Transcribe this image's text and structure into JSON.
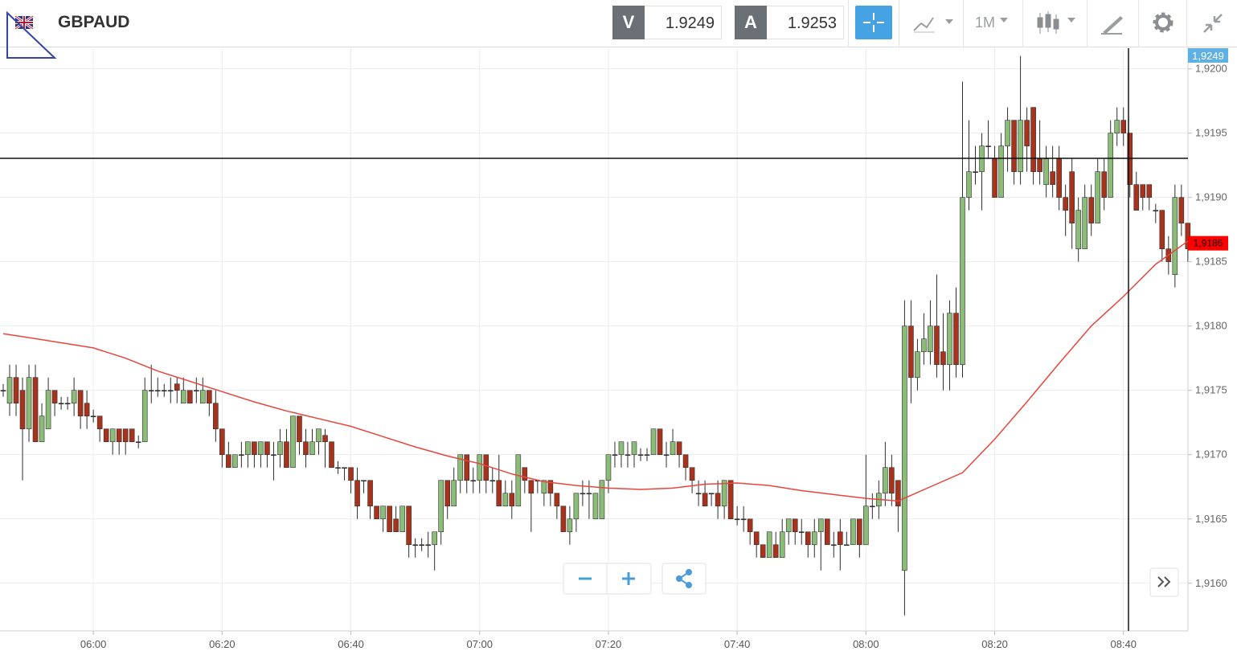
{
  "header": {
    "symbol": "GBPAUD",
    "bid_label": "V",
    "bid": "1.9249",
    "ask_label": "A",
    "ask": "1.9253",
    "timeframe": "1M"
  },
  "chart_data": {
    "type": "candlestick",
    "x": [
      "05:46",
      "05:47",
      "05:48",
      "05:49",
      "05:50",
      "05:51",
      "05:52",
      "05:53",
      "05:54",
      "05:55",
      "05:56",
      "05:57",
      "05:58",
      "05:59",
      "06:00",
      "06:01",
      "06:02",
      "06:03",
      "06:04",
      "06:05",
      "06:06",
      "06:07",
      "06:08",
      "06:09",
      "06:10",
      "06:11",
      "06:12",
      "06:13",
      "06:14",
      "06:15",
      "06:16",
      "06:17",
      "06:18",
      "06:19",
      "06:20",
      "06:21",
      "06:22",
      "06:23",
      "06:24",
      "06:25",
      "06:26",
      "06:27",
      "06:28",
      "06:29",
      "06:30",
      "06:31",
      "06:32",
      "06:33",
      "06:34",
      "06:35",
      "06:36",
      "06:37",
      "06:38",
      "06:39",
      "06:40",
      "06:41",
      "06:42",
      "06:43",
      "06:44",
      "06:45",
      "06:46",
      "06:47",
      "06:48",
      "06:49",
      "06:50",
      "06:51",
      "06:52",
      "06:53",
      "06:54",
      "06:55",
      "06:56",
      "06:57",
      "06:58",
      "06:59",
      "07:00",
      "07:01",
      "07:02",
      "07:03",
      "07:04",
      "07:05",
      "07:06",
      "07:07",
      "07:08",
      "07:09",
      "07:10",
      "07:11",
      "07:12",
      "07:13",
      "07:14",
      "07:15",
      "07:16",
      "07:17",
      "07:18",
      "07:19",
      "07:20",
      "07:21",
      "07:22",
      "07:23",
      "07:24",
      "07:25",
      "07:26",
      "07:27",
      "07:28",
      "07:29",
      "07:30",
      "07:31",
      "07:32",
      "07:33",
      "07:34",
      "07:35",
      "07:36",
      "07:37",
      "07:38",
      "07:39",
      "07:40",
      "07:41",
      "07:42",
      "07:43",
      "07:44",
      "07:45",
      "07:46",
      "07:47",
      "07:48",
      "07:49",
      "07:50",
      "07:51",
      "07:52",
      "07:53",
      "07:54",
      "07:55",
      "07:56",
      "07:57",
      "07:58",
      "07:59",
      "08:00",
      "08:01",
      "08:02",
      "08:03",
      "08:04",
      "08:05",
      "08:06",
      "08:07",
      "08:08",
      "08:09",
      "08:10",
      "08:11",
      "08:12",
      "08:13",
      "08:14",
      "08:15",
      "08:16",
      "08:17",
      "08:18",
      "08:19",
      "08:20",
      "08:21",
      "08:22",
      "08:23",
      "08:24",
      "08:25",
      "08:26",
      "08:27",
      "08:28",
      "08:29",
      "08:30",
      "08:31",
      "08:32",
      "08:33",
      "08:34",
      "08:35",
      "08:36",
      "08:37",
      "08:38",
      "08:39",
      "08:40",
      "08:41",
      "08:42",
      "08:43",
      "08:44",
      "08:45",
      "08:46",
      "08:47",
      "08:48",
      "08:49",
      "08:50"
    ],
    "open": [
      1.9175,
      1.9174,
      1.9176,
      1.9175,
      1.9172,
      1.9176,
      1.9171,
      1.9172,
      1.9175,
      1.9174,
      1.9174,
      1.9174,
      1.9175,
      1.9174,
      1.9173,
      1.9173,
      1.9172,
      1.9171,
      1.9172,
      1.9172,
      1.9172,
      1.9171,
      1.9171,
      1.9175,
      1.9175,
      1.9175,
      1.9175,
      1.91755,
      1.9174,
      1.9175,
      1.9175,
      1.9174,
      1.9175,
      1.9174,
      1.9172,
      1.917,
      1.9169,
      1.917,
      1.917,
      1.9171,
      1.917,
      1.9171,
      1.917,
      1.917,
      1.9171,
      1.9169,
      1.9173,
      1.9171,
      1.917,
      1.9171,
      1.91715,
      1.9171,
      1.9169,
      1.9169,
      1.9169,
      1.9168,
      1.9168,
      1.9168,
      1.9166,
      1.9165,
      1.9166,
      1.9165,
      1.9164,
      1.9166,
      1.9163,
      1.9163,
      1.9163,
      1.9163,
      1.9164,
      1.9168,
      1.9166,
      1.9168,
      1.917,
      1.9168,
      1.9168,
      1.917,
      1.9168,
      1.9168,
      1.9166,
      1.9167,
      1.9166,
      1.9169,
      1.9168,
      1.9168,
      1.9167,
      1.9168,
      1.9167,
      1.9166,
      1.9164,
      1.9165,
      1.9167,
      1.9167,
      1.9165,
      1.9165,
      1.9168,
      1.917,
      1.917,
      1.917,
      1.917,
      1.917,
      1.917,
      1.917,
      1.9172,
      1.917,
      1.917,
      1.9171,
      1.917,
      1.9169,
      1.9167,
      1.9167,
      1.9167,
      1.9167,
      1.9166,
      1.9168,
      1.9165,
      1.9165,
      1.9165,
      1.9164,
      1.9163,
      1.9162,
      1.9163,
      1.9162,
      1.9164,
      1.9165,
      1.9164,
      1.9164,
      1.9163,
      1.9164,
      1.9165,
      1.9163,
      1.9164,
      1.9163,
      1.9163,
      1.9165,
      1.9163,
      1.9166,
      1.9166,
      1.9167,
      1.9169,
      1.9168,
      1.9161,
      1.918,
      1.9176,
      1.9178,
      1.9178,
      1.918,
      1.9178,
      1.9177,
      1.9181,
      1.9177,
      1.919,
      1.9192,
      1.9192,
      1.9194,
      1.9193,
      1.919,
      1.9194,
      1.9196,
      1.9192,
      1.9196,
      1.9197,
      1.9193,
      1.9191,
      1.9192,
      1.9193,
      1.919,
      1.9192,
      1.9186,
      1.9186,
      1.919,
      1.9188,
      1.9192,
      1.919,
      1.9195,
      1.9196,
      1.9195,
      1.9191,
      1.9191,
      1.9191,
      1.9189,
      1.9189,
      1.9186,
      1.9184,
      1.919,
      1.9188
    ],
    "high": [
      1.91755,
      1.9177,
      1.9177,
      1.9176,
      1.9177,
      1.9177,
      1.9174,
      1.9176,
      1.9175,
      1.91745,
      1.91745,
      1.9176,
      1.9175,
      1.9175,
      1.91735,
      1.9173,
      1.9172,
      1.9172,
      1.9172,
      1.9172,
      1.9172,
      1.91715,
      1.9176,
      1.9177,
      1.9176,
      1.91755,
      1.9176,
      1.9176,
      1.9176,
      1.9175,
      1.9176,
      1.9176,
      1.9175,
      1.9175,
      1.9172,
      1.9171,
      1.917,
      1.9171,
      1.9171,
      1.9171,
      1.9171,
      1.9171,
      1.9171,
      1.9172,
      1.9172,
      1.9173,
      1.9173,
      1.9172,
      1.9172,
      1.9172,
      1.9172,
      1.9171,
      1.91695,
      1.9169,
      1.9169,
      1.9169,
      1.9168,
      1.9168,
      1.9166,
      1.9166,
      1.9166,
      1.9166,
      1.9166,
      1.9166,
      1.91635,
      1.91635,
      1.9164,
      1.9164,
      1.9168,
      1.9168,
      1.9169,
      1.917,
      1.917,
      1.9169,
      1.917,
      1.917,
      1.9169,
      1.917,
      1.9168,
      1.9168,
      1.917,
      1.9169,
      1.9168,
      1.9168,
      1.9168,
      1.9168,
      1.9167,
      1.9166,
      1.9166,
      1.9167,
      1.9168,
      1.9168,
      1.9167,
      1.9168,
      1.917,
      1.9171,
      1.9171,
      1.9171,
      1.9171,
      1.91705,
      1.91705,
      1.9172,
      1.9172,
      1.9171,
      1.9172,
      1.9171,
      1.917,
      1.9169,
      1.9168,
      1.9168,
      1.9167,
      1.9168,
      1.9168,
      1.9168,
      1.9166,
      1.9166,
      1.9165,
      1.9164,
      1.9163,
      1.9164,
      1.9164,
      1.9165,
      1.9165,
      1.9165,
      1.9165,
      1.9164,
      1.9165,
      1.9165,
      1.9165,
      1.9164,
      1.9165,
      1.9164,
      1.9165,
      1.9165,
      1.917,
      1.9167,
      1.9168,
      1.9171,
      1.917,
      1.9168,
      1.9182,
      1.9182,
      1.9179,
      1.9181,
      1.9182,
      1.9184,
      1.9181,
      1.9182,
      1.9183,
      1.9199,
      1.9196,
      1.9194,
      1.9195,
      1.9196,
      1.9194,
      1.9195,
      1.9197,
      1.9196,
      1.9201,
      1.9197,
      1.9197,
      1.9196,
      1.9194,
      1.9194,
      1.9194,
      1.9191,
      1.9193,
      1.919,
      1.9191,
      1.9191,
      1.9193,
      1.9193,
      1.9196,
      1.9197,
      1.9197,
      1.9195,
      1.9192,
      1.9191,
      1.9191,
      1.91895,
      1.9189,
      1.9187,
      1.9191,
      1.9191,
      1.9188
    ],
    "low": [
      1.91745,
      1.9173,
      1.9173,
      1.9168,
      1.9171,
      1.9171,
      1.9171,
      1.9172,
      1.9173,
      1.91735,
      1.91735,
      1.9173,
      1.9172,
      1.9172,
      1.91725,
      1.9171,
      1.9171,
      1.917,
      1.917,
      1.917,
      1.9171,
      1.91705,
      1.9171,
      1.9174,
      1.91745,
      1.91745,
      1.9174,
      1.9174,
      1.9174,
      1.9174,
      1.9174,
      1.9174,
      1.9173,
      1.9171,
      1.9169,
      1.9169,
      1.9169,
      1.9169,
      1.9169,
      1.9169,
      1.9169,
      1.9169,
      1.9168,
      1.9169,
      1.9169,
      1.9169,
      1.917,
      1.9169,
      1.917,
      1.917,
      1.9169,
      1.9169,
      1.91685,
      1.9168,
      1.9167,
      1.9165,
      1.9167,
      1.9165,
      1.9165,
      1.9164,
      1.9164,
      1.9164,
      1.9164,
      1.9162,
      1.9162,
      1.91625,
      1.9162,
      1.9161,
      1.9163,
      1.9165,
      1.9166,
      1.9167,
      1.9167,
      1.9167,
      1.9167,
      1.9167,
      1.9167,
      1.9166,
      1.9166,
      1.9165,
      1.9166,
      1.9167,
      1.9164,
      1.9167,
      1.9166,
      1.9166,
      1.9165,
      1.9164,
      1.9163,
      1.9164,
      1.9166,
      1.9165,
      1.9165,
      1.9165,
      1.9167,
      1.9169,
      1.9169,
      1.9169,
      1.9169,
      1.91695,
      1.91695,
      1.917,
      1.917,
      1.9169,
      1.917,
      1.9169,
      1.9168,
      1.9167,
      1.9166,
      1.9166,
      1.9166,
      1.9165,
      1.9165,
      1.9165,
      1.91645,
      1.9164,
      1.9163,
      1.9162,
      1.9162,
      1.9162,
      1.9162,
      1.9162,
      1.9163,
      1.9163,
      1.9163,
      1.9162,
      1.9162,
      1.9161,
      1.9163,
      1.9162,
      1.9161,
      1.9163,
      1.9163,
      1.9162,
      1.9163,
      1.9165,
      1.9165,
      1.9166,
      1.9166,
      1.9164,
      1.91575,
      1.9174,
      1.9175,
      1.9177,
      1.9177,
      1.9176,
      1.9175,
      1.9175,
      1.9176,
      1.9176,
      1.9189,
      1.9191,
      1.9189,
      1.9193,
      1.919,
      1.919,
      1.9192,
      1.9191,
      1.9191,
      1.9192,
      1.9191,
      1.9191,
      1.919,
      1.919,
      1.9189,
      1.9187,
      1.9186,
      1.9185,
      1.9186,
      1.9187,
      1.9188,
      1.9189,
      1.919,
      1.9194,
      1.9194,
      1.919,
      1.9189,
      1.9189,
      1.9189,
      1.9188,
      1.9185,
      1.9184,
      1.9183,
      1.9187,
      1.9185
    ],
    "close": [
      1.9175,
      1.9176,
      1.9174,
      1.9172,
      1.9176,
      1.9171,
      1.9173,
      1.9175,
      1.9174,
      1.9174,
      1.9174,
      1.9175,
      1.9173,
      1.9173,
      1.9173,
      1.9172,
      1.9171,
      1.9172,
      1.9171,
      1.9171,
      1.9171,
      1.9171,
      1.9175,
      1.9175,
      1.9175,
      1.9175,
      1.9175,
      1.9175,
      1.9175,
      1.9174,
      1.9175,
      1.9175,
      1.9174,
      1.9172,
      1.917,
      1.9169,
      1.917,
      1.917,
      1.9171,
      1.917,
      1.9171,
      1.917,
      1.917,
      1.9171,
      1.9169,
      1.9173,
      1.9171,
      1.917,
      1.9171,
      1.9172,
      1.9171,
      1.9169,
      1.9169,
      1.9169,
      1.9168,
      1.9166,
      1.9168,
      1.9166,
      1.9165,
      1.9166,
      1.9164,
      1.9164,
      1.9166,
      1.9163,
      1.9163,
      1.9163,
      1.9163,
      1.9164,
      1.9168,
      1.9166,
      1.9168,
      1.917,
      1.9168,
      1.9168,
      1.917,
      1.9168,
      1.9168,
      1.9166,
      1.9167,
      1.9166,
      1.917,
      1.9168,
      1.9167,
      1.9168,
      1.9168,
      1.9167,
      1.9166,
      1.9164,
      1.9165,
      1.9167,
      1.9167,
      1.9167,
      1.9167,
      1.9168,
      1.917,
      1.917,
      1.9171,
      1.917,
      1.9171,
      1.917,
      1.917,
      1.9172,
      1.917,
      1.917,
      1.9171,
      1.917,
      1.9169,
      1.9168,
      1.9167,
      1.9166,
      1.9167,
      1.9166,
      1.9168,
      1.9165,
      1.9165,
      1.9165,
      1.9164,
      1.9163,
      1.9162,
      1.9164,
      1.9162,
      1.9164,
      1.9165,
      1.9164,
      1.9164,
      1.9163,
      1.9164,
      1.9165,
      1.9163,
      1.9163,
      1.9163,
      1.9163,
      1.9165,
      1.9163,
      1.9166,
      1.9166,
      1.9167,
      1.9169,
      1.9167,
      1.9166,
      1.918,
      1.9176,
      1.9178,
      1.9179,
      1.918,
      1.9177,
      1.9177,
      1.9181,
      1.9177,
      1.919,
      1.9192,
      1.9192,
      1.9194,
      1.9194,
      1.919,
      1.9194,
      1.9196,
      1.9192,
      1.9196,
      1.9194,
      1.9192,
      1.9192,
      1.9193,
      1.9191,
      1.919,
      1.9189,
      1.9188,
      1.9189,
      1.919,
      1.9188,
      1.9192,
      1.919,
      1.9195,
      1.9196,
      1.9195,
      1.9191,
      1.9189,
      1.919,
      1.919,
      1.9189,
      1.9186,
      1.9185,
      1.919,
      1.9188,
      1.9186
    ],
    "colors": {
      "up": "#8cbd78",
      "down": "#a8331c",
      "wick": "#2e2e2e"
    },
    "ma": {
      "color": "#e8453c",
      "x": [
        "05:46",
        "05:50",
        "05:55",
        "06:00",
        "06:05",
        "06:10",
        "06:15",
        "06:20",
        "06:25",
        "06:30",
        "06:35",
        "06:40",
        "06:45",
        "06:50",
        "06:55",
        "07:00",
        "07:05",
        "07:10",
        "07:15",
        "07:20",
        "07:25",
        "07:30",
        "07:35",
        "07:40",
        "07:45",
        "07:50",
        "07:55",
        "08:00",
        "08:05",
        "08:10",
        "08:15",
        "08:20",
        "08:25",
        "08:30",
        "08:35",
        "08:40",
        "08:45",
        "08:50"
      ],
      "values": [
        1.91794,
        1.91791,
        1.91787,
        1.91783,
        1.91775,
        1.91765,
        1.91757,
        1.91749,
        1.91741,
        1.91734,
        1.91728,
        1.91722,
        1.91714,
        1.91706,
        1.91699,
        1.91693,
        1.91685,
        1.91679,
        1.91676,
        1.91674,
        1.91673,
        1.91674,
        1.91677,
        1.91678,
        1.91676,
        1.91672,
        1.91669,
        1.91666,
        1.91664,
        1.91675,
        1.91686,
        1.91712,
        1.91741,
        1.91771,
        1.918,
        1.91823,
        1.91848,
        1.91866
      ]
    },
    "ylim": [
      1.91563,
      1.92016
    ],
    "yticks": [
      {
        "value": 1.916,
        "label": "1,9160"
      },
      {
        "value": 1.9165,
        "label": "1,9165"
      },
      {
        "value": 1.917,
        "label": "1,9170"
      },
      {
        "value": 1.9175,
        "label": "1,9175"
      },
      {
        "value": 1.918,
        "label": "1,9180"
      },
      {
        "value": 1.9185,
        "label": "1,9185"
      },
      {
        "value": 1.919,
        "label": "1,9190"
      },
      {
        "value": 1.9195,
        "label": "1,9195"
      },
      {
        "value": 1.92,
        "label": "1,9200"
      }
    ],
    "xticks": [
      "06:00",
      "06:20",
      "06:40",
      "07:00",
      "07:20",
      "07:40",
      "08:00",
      "08:20",
      "08:40"
    ],
    "grid": true,
    "top_badge": "1,9249",
    "last_price": {
      "value": 1.9186,
      "label": "1,9186"
    }
  }
}
